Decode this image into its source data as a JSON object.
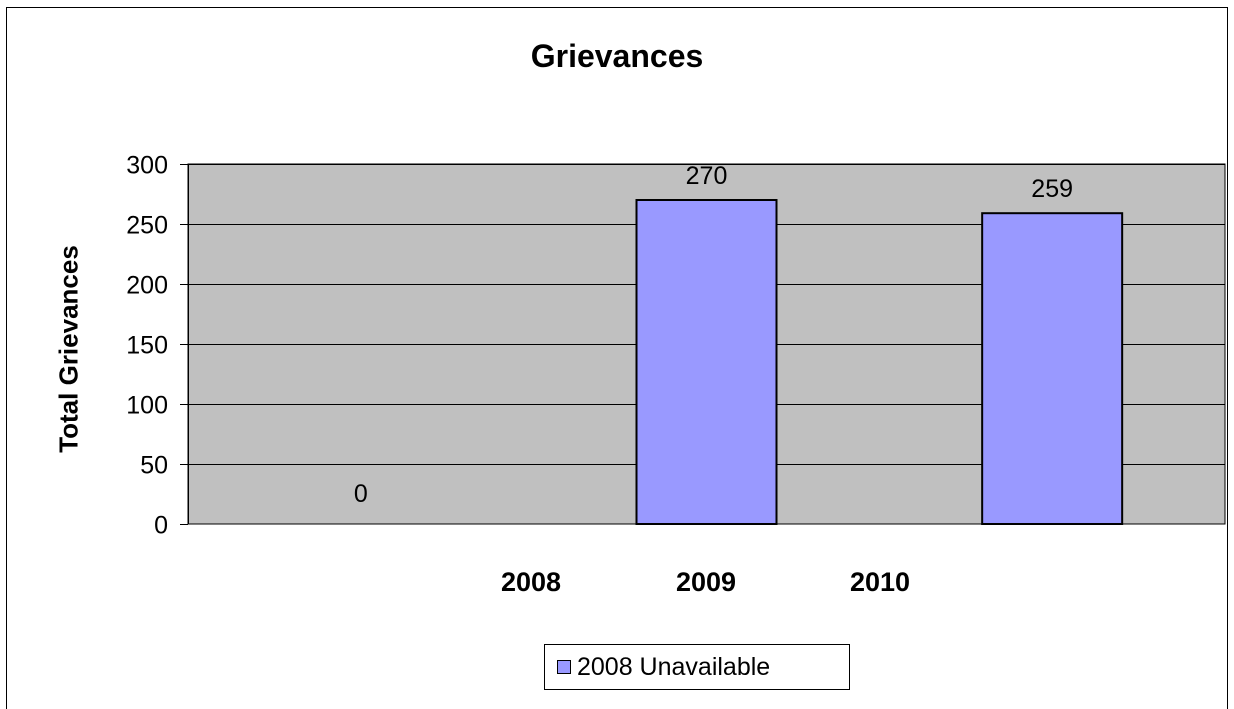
{
  "chart_data": {
    "type": "bar",
    "title": "Grievances",
    "xlabel": "",
    "ylabel": "Total Grievances",
    "ylim": [
      0,
      300
    ],
    "y_ticks": [
      0,
      50,
      100,
      150,
      200,
      250,
      300
    ],
    "categories": [
      "2008",
      "2009",
      "2010"
    ],
    "series": [
      {
        "name": "2008 Unavailable",
        "values": [
          0,
          270,
          259
        ],
        "data_labels": [
          "0",
          "270",
          "259"
        ]
      }
    ],
    "grid": true,
    "legend_position": "bottom",
    "colors": {
      "plot_background": "#c0c0c0",
      "bar_fill": "#9999ff",
      "bar_stroke": "#000000",
      "gridline": "#000000"
    }
  }
}
